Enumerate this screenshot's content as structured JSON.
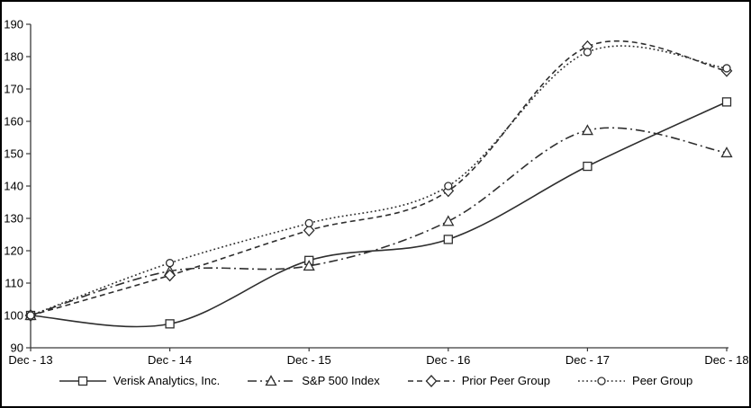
{
  "chart_data": {
    "type": "line",
    "x_categories": [
      "Dec - 13",
      "Dec - 14",
      "Dec - 15",
      "Dec - 16",
      "Dec - 17",
      "Dec - 18"
    ],
    "y_ticks": [
      90,
      100,
      110,
      120,
      130,
      140,
      150,
      160,
      170,
      180,
      190
    ],
    "ylim": [
      90,
      190
    ],
    "grid": "off",
    "legend_position": "bottom",
    "line_color": "#2e2e2e",
    "marker_fill": "#ffffff",
    "smooth": true,
    "series": [
      {
        "name": "Verisk Analytics, Inc.",
        "marker": "square",
        "line_style": "solid",
        "values": [
          100,
          97.4,
          117.0,
          123.5,
          146.1,
          166.0
        ]
      },
      {
        "name": "S&P 500 Index",
        "marker": "triangle",
        "line_style": "dash-dot",
        "values": [
          100,
          113.7,
          115.3,
          129.1,
          157.2,
          150.3
        ]
      },
      {
        "name": "Prior Peer Group",
        "marker": "diamond",
        "line_style": "dashed",
        "values": [
          100,
          112.4,
          126.3,
          138.5,
          183.1,
          175.6
        ]
      },
      {
        "name": "Peer Group",
        "marker": "circle",
        "line_style": "dotted",
        "values": [
          100,
          116.2,
          128.5,
          140.0,
          181.4,
          176.4
        ]
      }
    ]
  }
}
